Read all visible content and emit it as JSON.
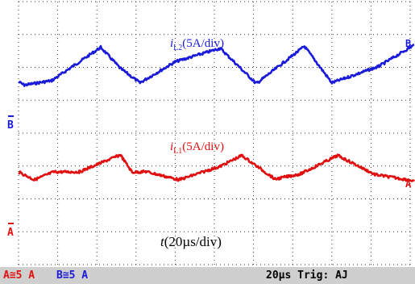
{
  "chart_data": [
    {
      "type": "line",
      "title": "",
      "xlabel": "t(20µs/div)",
      "x_label_parts": {
        "var": "t",
        "rest": "(20µs/div)"
      },
      "ylabel": "",
      "grid": true,
      "divisions": {
        "x": 10,
        "y": 8
      },
      "xlim": [
        0,
        200
      ],
      "x_unit": "µs",
      "series": [
        {
          "name": "iL2(5A/div)",
          "label_parts": {
            "var": "i",
            "sub": "L2",
            "rest": "(5A/div)"
          },
          "channel": "B",
          "color": "#1a1adb",
          "y_unit": "div",
          "x": [
            0,
            3,
            17,
            42,
            52,
            62,
            80,
            103,
            121,
            122,
            146,
            160,
            184,
            202
          ],
          "y": [
            5.56,
            5.46,
            5.6,
            6.61,
            5.97,
            5.53,
            6.17,
            6.58,
            5.53,
            5.53,
            6.64,
            5.53,
            6.03,
            6.68
          ]
        },
        {
          "name": "iL1(5A/div)",
          "label_parts": {
            "var": "i",
            "sub": "L1",
            "rest": "(5A/div)"
          },
          "channel": "A",
          "color": "#e01010",
          "y_unit": "div",
          "x": [
            0,
            8,
            18,
            31,
            52,
            58,
            62,
            65,
            82,
            103,
            114,
            131,
            144,
            163,
            182,
            202
          ],
          "y": [
            2.82,
            2.58,
            2.82,
            2.82,
            3.34,
            2.81,
            2.82,
            2.83,
            2.58,
            2.99,
            3.32,
            2.6,
            2.76,
            3.32,
            2.74,
            2.55
          ]
        }
      ]
    }
  ],
  "channel_markers": [
    {
      "letter": "B",
      "color": "#1a1adb"
    },
    {
      "letter": "A",
      "color": "#e01010"
    }
  ],
  "status_bar": {
    "ch_a": "A≅5 A",
    "ch_b": "B≅5 A",
    "timebase_trigger": "20µs Trig: AJ"
  },
  "colors": {
    "grid_dot": "#333333",
    "background": "#ffffff",
    "status_bg": "#cfcfcf"
  }
}
